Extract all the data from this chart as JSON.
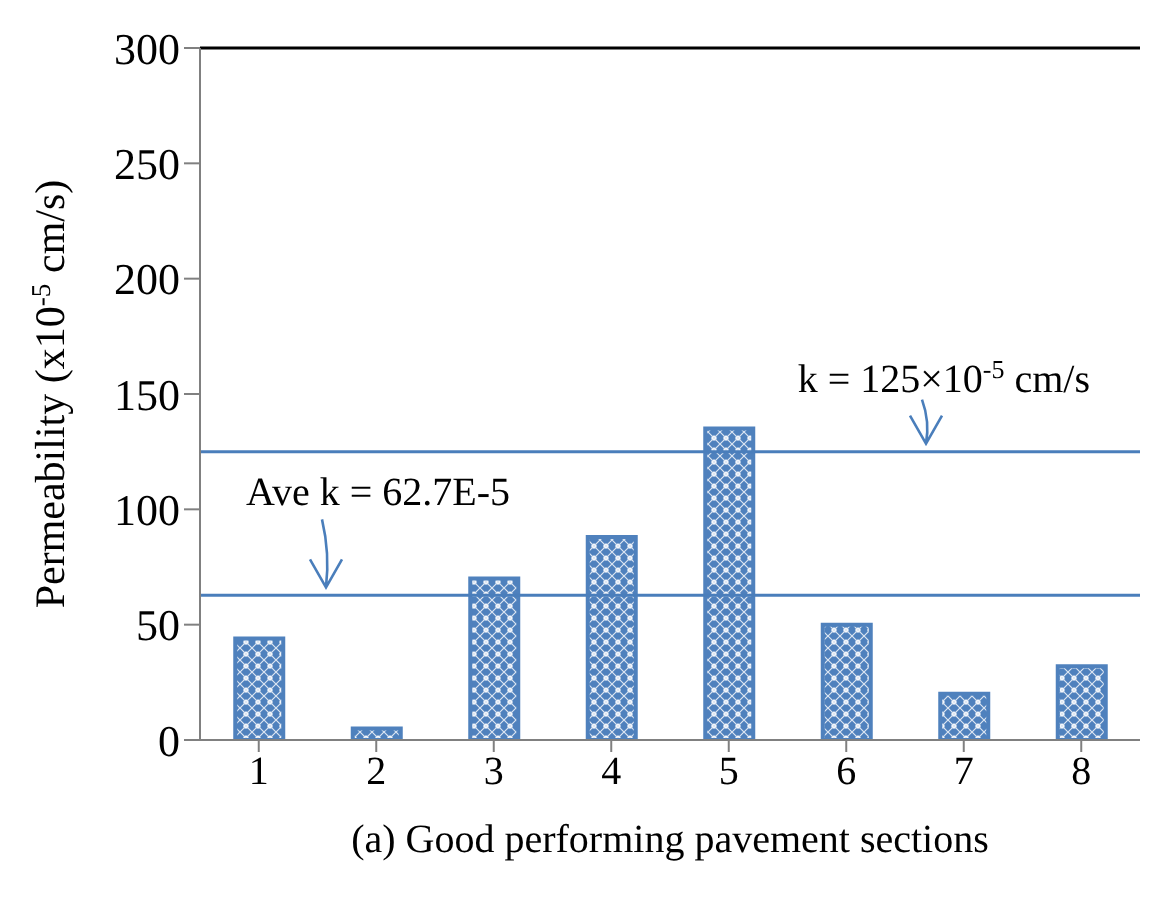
{
  "chart_data": {
    "type": "bar",
    "xlabel": "(a) Good performing pavement sections",
    "ylabel": "Permeability (x10$^{-5}$  cm/s)",
    "categories": [
      "1",
      "2",
      "3",
      "4",
      "5",
      "6",
      "7",
      "8"
    ],
    "values": [
      44,
      5,
      70,
      88,
      135,
      50,
      20,
      32
    ],
    "color": "#4f81bd",
    "ylim": [
      0,
      300
    ],
    "yticks": [
      0,
      50,
      100,
      150,
      200,
      250,
      300
    ],
    "ref_lines": [
      {
        "axis": "y",
        "value": 125,
        "label": "k = 125×10$^{-5}$ cm/s",
        "color": "#4a7ebb"
      },
      {
        "axis": "y",
        "value": 62.7,
        "label": "Ave  k = 62.7E-5",
        "color": "#4a7ebb"
      }
    ]
  }
}
